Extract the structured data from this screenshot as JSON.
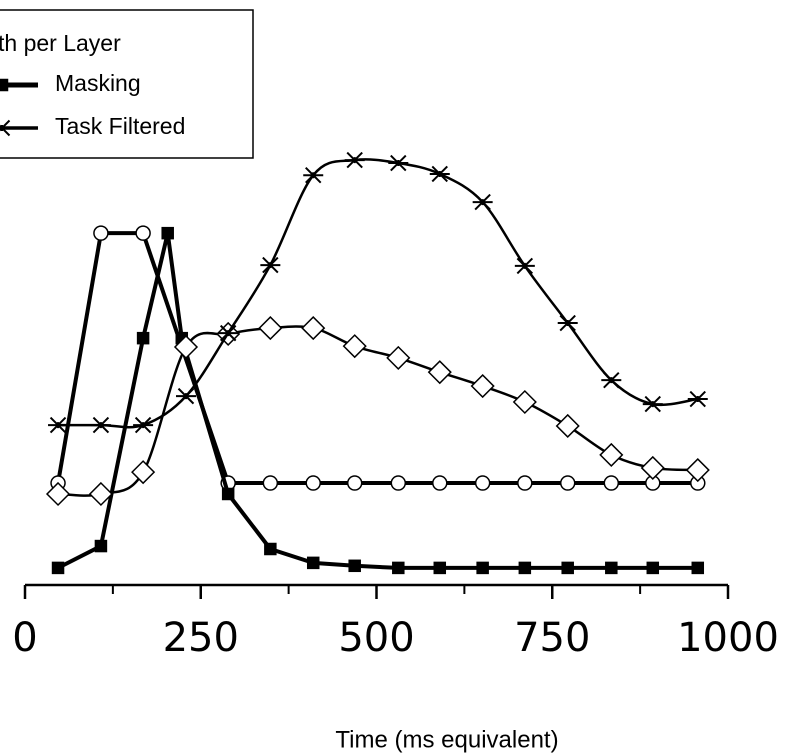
{
  "chart_data": {
    "type": "line",
    "legend_title": "th per Layer",
    "x_label": "Time (ms equivalent)",
    "xlim": [
      0,
      1000
    ],
    "xticks": [
      0,
      250,
      500,
      750,
      1000
    ],
    "ylim": [
      0,
      100
    ],
    "series": [
      {
        "color": "#000000",
        "marker": "circle",
        "smooth": false,
        "width": 4,
        "x": [
          47,
          108,
          168,
          289,
          349,
          410,
          469,
          531,
          590,
          651,
          711,
          772,
          834,
          893,
          957
        ],
        "values": [
          20.7,
          80.2,
          80.2,
          20.7,
          20.7,
          20.7,
          20.7,
          20.7,
          20.7,
          20.7,
          20.7,
          20.7,
          20.7,
          20.7,
          20.7
        ]
      },
      {
        "name": "Masking",
        "color": "#000000",
        "marker": "square",
        "smooth": false,
        "width": 4,
        "x": [
          47,
          108,
          168,
          203,
          223,
          289,
          349,
          410,
          469,
          531,
          590,
          651,
          711,
          772,
          834,
          893,
          957
        ],
        "values": [
          0.5,
          5.7,
          55.2,
          80.2,
          55.2,
          18.1,
          5,
          1.7,
          1,
          0.5,
          0.5,
          0.5,
          0.5,
          0.5,
          0.5,
          0.5,
          0.5
        ]
      },
      {
        "color": "#000000",
        "marker": "diamond",
        "smooth": true,
        "width": 2.5,
        "x": [
          47,
          108,
          168,
          229,
          289,
          349,
          410,
          469,
          531,
          590,
          651,
          711,
          772,
          834,
          893,
          957
        ],
        "values": [
          18.1,
          18.1,
          23.3,
          53.1,
          56.2,
          57.6,
          57.6,
          53.3,
          50.5,
          47.1,
          43.8,
          40,
          34.3,
          27.4,
          24.3,
          23.8
        ]
      },
      {
        "name": "Task Filtered",
        "color": "#000000",
        "marker": "asterisk",
        "smooth": true,
        "width": 2.5,
        "x": [
          47,
          108,
          168,
          229,
          289,
          349,
          410,
          469,
          531,
          590,
          651,
          711,
          772,
          834,
          893,
          957
        ],
        "values": [
          34.5,
          34.5,
          34.5,
          41.4,
          56.4,
          72.6,
          94,
          97.6,
          96.9,
          94.3,
          87.6,
          72.4,
          58.8,
          45.2,
          39.5,
          40.7
        ]
      }
    ]
  }
}
